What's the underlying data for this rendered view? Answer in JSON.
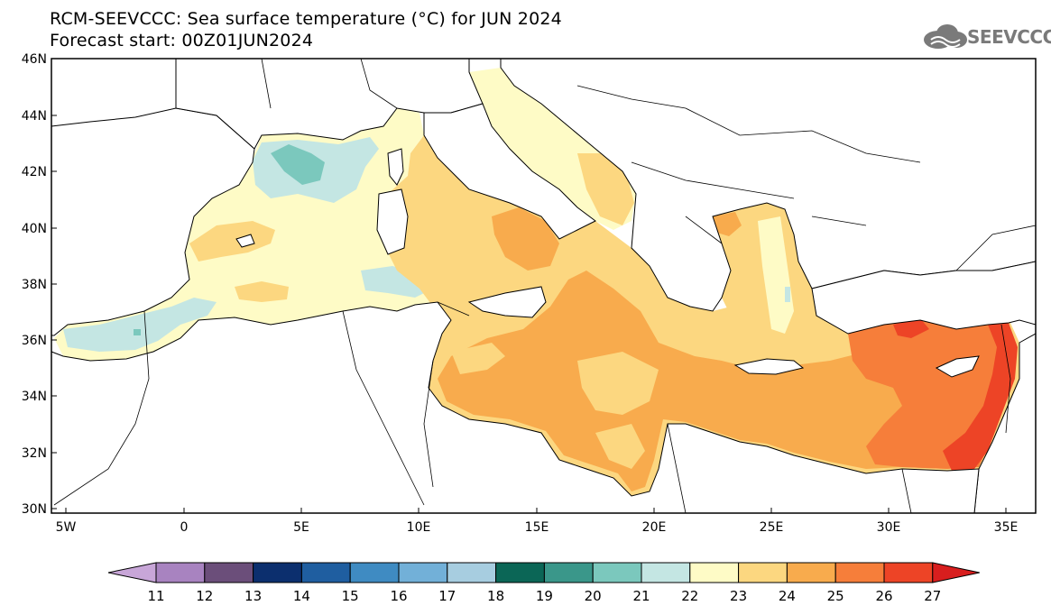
{
  "header": {
    "title_line1": "RCM-SEEVCCC: Sea surface temperature (°C) for JUN 2024",
    "title_line2": "Forecast start: 00Z01JUN2024"
  },
  "logo": {
    "text": "SEEVCCC",
    "icon": "cloud-icon"
  },
  "map": {
    "lat_ticks": [
      "46N",
      "44N",
      "42N",
      "40N",
      "38N",
      "36N",
      "34N",
      "32N",
      "30N"
    ],
    "lon_ticks": [
      "5W",
      "0",
      "5E",
      "10E",
      "15E",
      "20E",
      "25E",
      "30E",
      "35E"
    ]
  },
  "colorbar": {
    "labels": [
      "11",
      "12",
      "13",
      "14",
      "15",
      "16",
      "17",
      "18",
      "19",
      "20",
      "21",
      "22",
      "23",
      "24",
      "25",
      "26",
      "27"
    ],
    "colors": [
      "#c8a6d8",
      "#a883c0",
      "#6b4e7a",
      "#0c2f6e",
      "#1f5ea0",
      "#3f8bc2",
      "#72b0d8",
      "#a7cde0",
      "#0b6656",
      "#3a978a",
      "#7bc8bd",
      "#c4e6e3",
      "#fefbc6",
      "#fcd780",
      "#f8ab4d",
      "#f67e3a",
      "#ed4426",
      "#d81e1e"
    ]
  }
}
